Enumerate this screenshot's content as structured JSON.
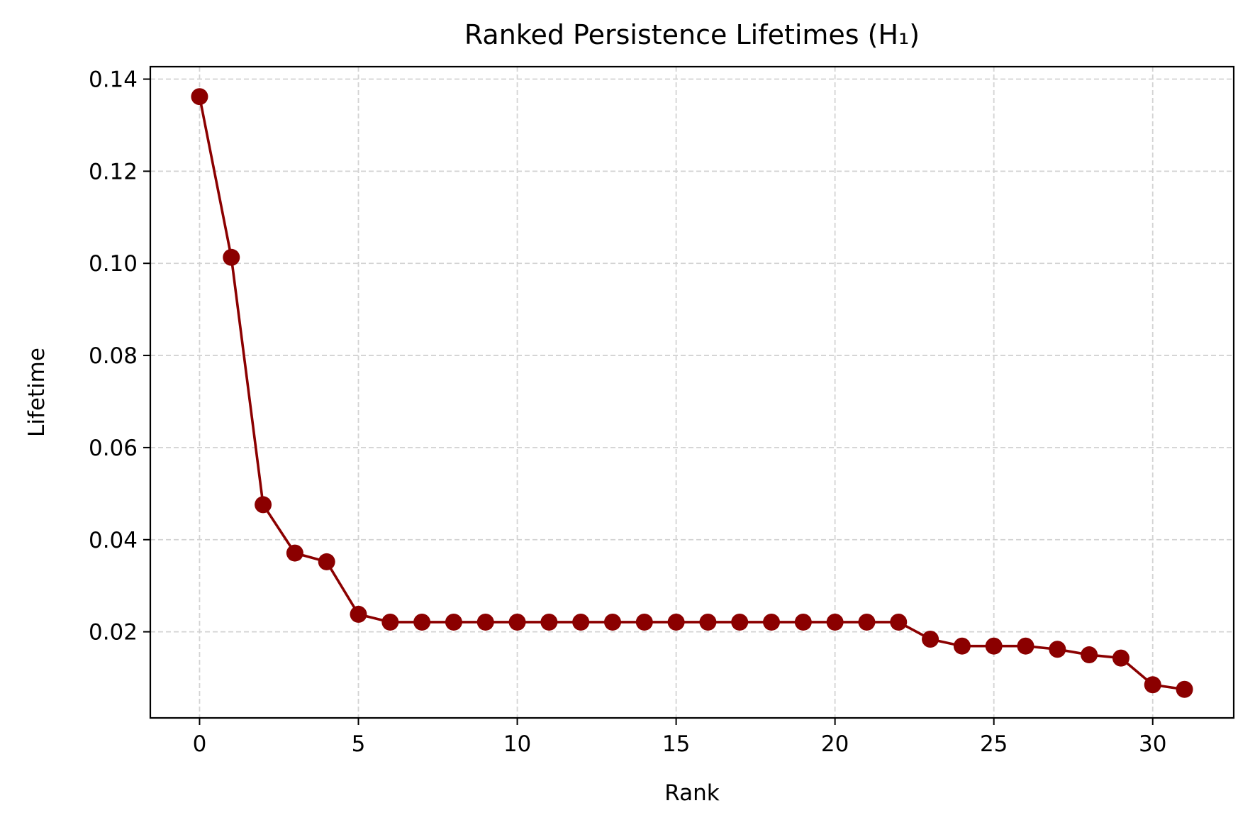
{
  "chart_data": {
    "type": "line",
    "title": "Ranked Persistence Lifetimes (H₁)",
    "xlabel": "Rank",
    "ylabel": "Lifetime",
    "xlim": [
      -1.55,
      32.55
    ],
    "ylim": [
      0.0013,
      0.1427
    ],
    "xticks": [
      0,
      5,
      10,
      15,
      20,
      25,
      30
    ],
    "yticks": [
      0.02,
      0.04,
      0.06,
      0.08,
      0.1,
      0.12,
      0.14
    ],
    "ytick_labels": [
      "0.02",
      "0.04",
      "0.06",
      "0.08",
      "0.10",
      "0.12",
      "0.14"
    ],
    "grid": true,
    "grid_style": "dashed",
    "legend": "none",
    "series": [
      {
        "color": "#8b0000",
        "marker": "circle",
        "x": [
          0,
          1,
          2,
          3,
          4,
          5,
          6,
          7,
          8,
          9,
          10,
          11,
          12,
          13,
          14,
          15,
          16,
          17,
          18,
          19,
          20,
          21,
          22,
          23,
          24,
          25,
          26,
          27,
          28,
          29,
          30,
          31
        ],
        "y": [
          0.1362,
          0.1013,
          0.0476,
          0.0371,
          0.0352,
          0.0238,
          0.0221,
          0.0221,
          0.0221,
          0.0221,
          0.0221,
          0.0221,
          0.0221,
          0.0221,
          0.0221,
          0.0221,
          0.0221,
          0.0221,
          0.0221,
          0.0221,
          0.0221,
          0.0221,
          0.0221,
          0.0184,
          0.0169,
          0.0169,
          0.0169,
          0.0162,
          0.015,
          0.0143,
          0.0085,
          0.0075
        ]
      }
    ]
  }
}
